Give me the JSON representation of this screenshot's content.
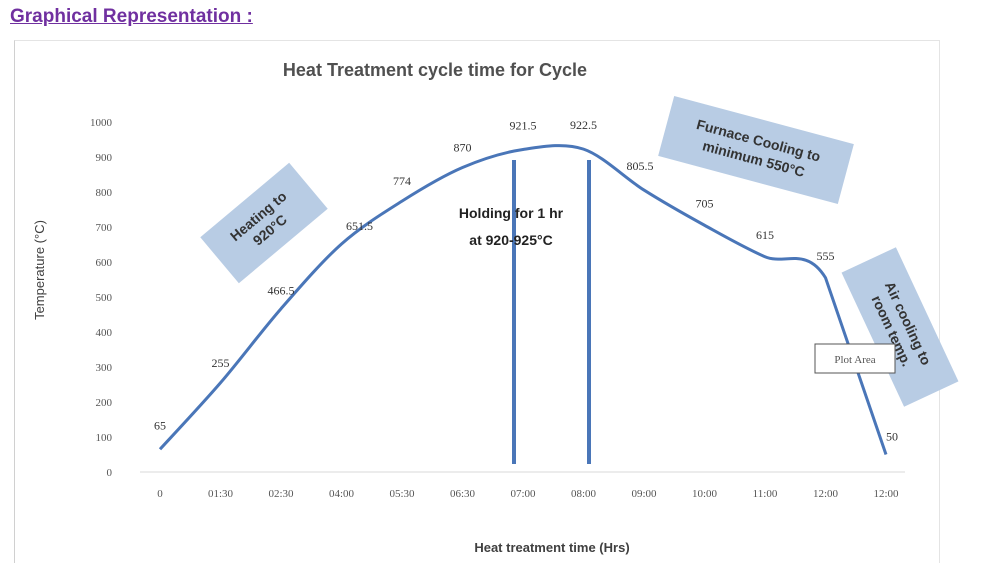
{
  "page": {
    "heading": "Graphical Representation :",
    "plot_area_tooltip": "Plot Area"
  },
  "colors": {
    "line": "#4a76b8",
    "annotation_box": "#b8cce4",
    "heading": "#7030a0"
  },
  "chart_data": {
    "type": "line",
    "title": "Heat Treatment cycle time for Cycle",
    "xlabel": "Heat treatment time (Hrs)",
    "ylabel": "Temperature (°C)",
    "categories": [
      "0",
      "01:30",
      "02:30",
      "04:00",
      "05:30",
      "06:30",
      "07:00",
      "08:00",
      "09:00",
      "10:00",
      "11:00",
      "12:00",
      "12:00"
    ],
    "yticks": [
      "0",
      "100",
      "200",
      "300",
      "400",
      "500",
      "600",
      "700",
      "800",
      "900",
      "1000"
    ],
    "ylim": [
      0,
      1000
    ],
    "grid": false,
    "series": [
      {
        "values": [
          65,
          255,
          466.5,
          651.5,
          774,
          870,
          921.5,
          922.5,
          805.5,
          705,
          615,
          555,
          50
        ],
        "labels": [
          "65",
          "255",
          "466.5",
          "651.5",
          "774",
          "870",
          "921.5",
          "922.5",
          "805.5",
          "705",
          "615",
          "555",
          "50"
        ]
      }
    ],
    "hold_lines_at": [
      "07:00",
      "08:00"
    ],
    "annotations": {
      "heating": [
        "Heating to",
        "920°C"
      ],
      "holding": [
        "Holding for 1 hr",
        "at 920-925°C"
      ],
      "furnace": [
        "Furnace Cooling to",
        "minimum 550°C"
      ],
      "air": [
        "Air cooling to",
        "room temp."
      ]
    }
  }
}
